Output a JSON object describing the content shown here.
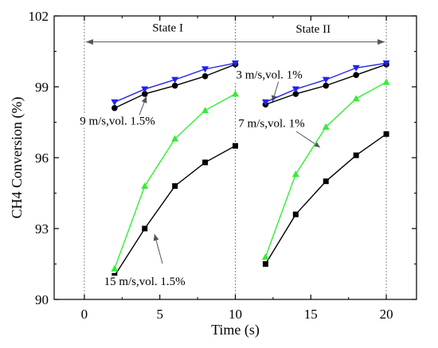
{
  "chart_data": {
    "type": "line",
    "xlabel": "Time (s)",
    "ylabel": "CH4 Conversion (%)",
    "xlim": [
      -2,
      22
    ],
    "ylim": [
      90,
      102
    ],
    "xticks": [
      0,
      5,
      10,
      15,
      20
    ],
    "yticks": [
      90,
      93,
      96,
      99,
      102
    ],
    "series": [
      {
        "color": "#000000",
        "marker": "square",
        "x": [
          2,
          4,
          6,
          8,
          10,
          12,
          14,
          16,
          18,
          20
        ],
        "y": [
          91.0,
          93.0,
          94.8,
          95.8,
          96.5,
          91.5,
          93.6,
          95.0,
          96.1,
          97.0
        ]
      },
      {
        "color": "#33ee33",
        "marker": "triangle-up",
        "x": [
          2,
          4,
          6,
          8,
          10,
          12,
          14,
          16,
          18,
          20
        ],
        "y": [
          91.3,
          94.8,
          96.8,
          98.0,
          98.7,
          91.8,
          95.3,
          97.3,
          98.5,
          99.2
        ]
      },
      {
        "color": "#000000",
        "marker": "circle",
        "x": [
          2,
          4,
          6,
          8,
          10,
          12,
          14,
          16,
          18,
          20
        ],
        "y": [
          98.1,
          98.7,
          99.05,
          99.45,
          99.95,
          98.25,
          98.7,
          99.05,
          99.5,
          99.95
        ]
      },
      {
        "color": "#2222ee",
        "marker": "triangle-down",
        "x": [
          2,
          4,
          6,
          8,
          10,
          12,
          14,
          16,
          18,
          20
        ],
        "y": [
          98.35,
          98.9,
          99.3,
          99.75,
          100.0,
          98.35,
          98.9,
          99.3,
          99.8,
          100.0
        ]
      }
    ],
    "vlines": [
      0,
      10,
      20
    ],
    "annotations": [
      {
        "text": "State I",
        "x": 4.5,
        "y": 101.35
      },
      {
        "text": "State II",
        "x": 14.0,
        "y": 101.3
      },
      {
        "text": "3 m/s,vol. 1%",
        "x": 10.05,
        "y": 99.35
      },
      {
        "text": "9 m/s,vol. 1.5%",
        "x": -0.3,
        "y": 97.4
      },
      {
        "text": "7 m/s,vol. 1%",
        "x": 10.2,
        "y": 97.3
      },
      {
        "text": "15 m/s,vol. 1.5%",
        "x": 1.3,
        "y": 90.6
      }
    ]
  }
}
